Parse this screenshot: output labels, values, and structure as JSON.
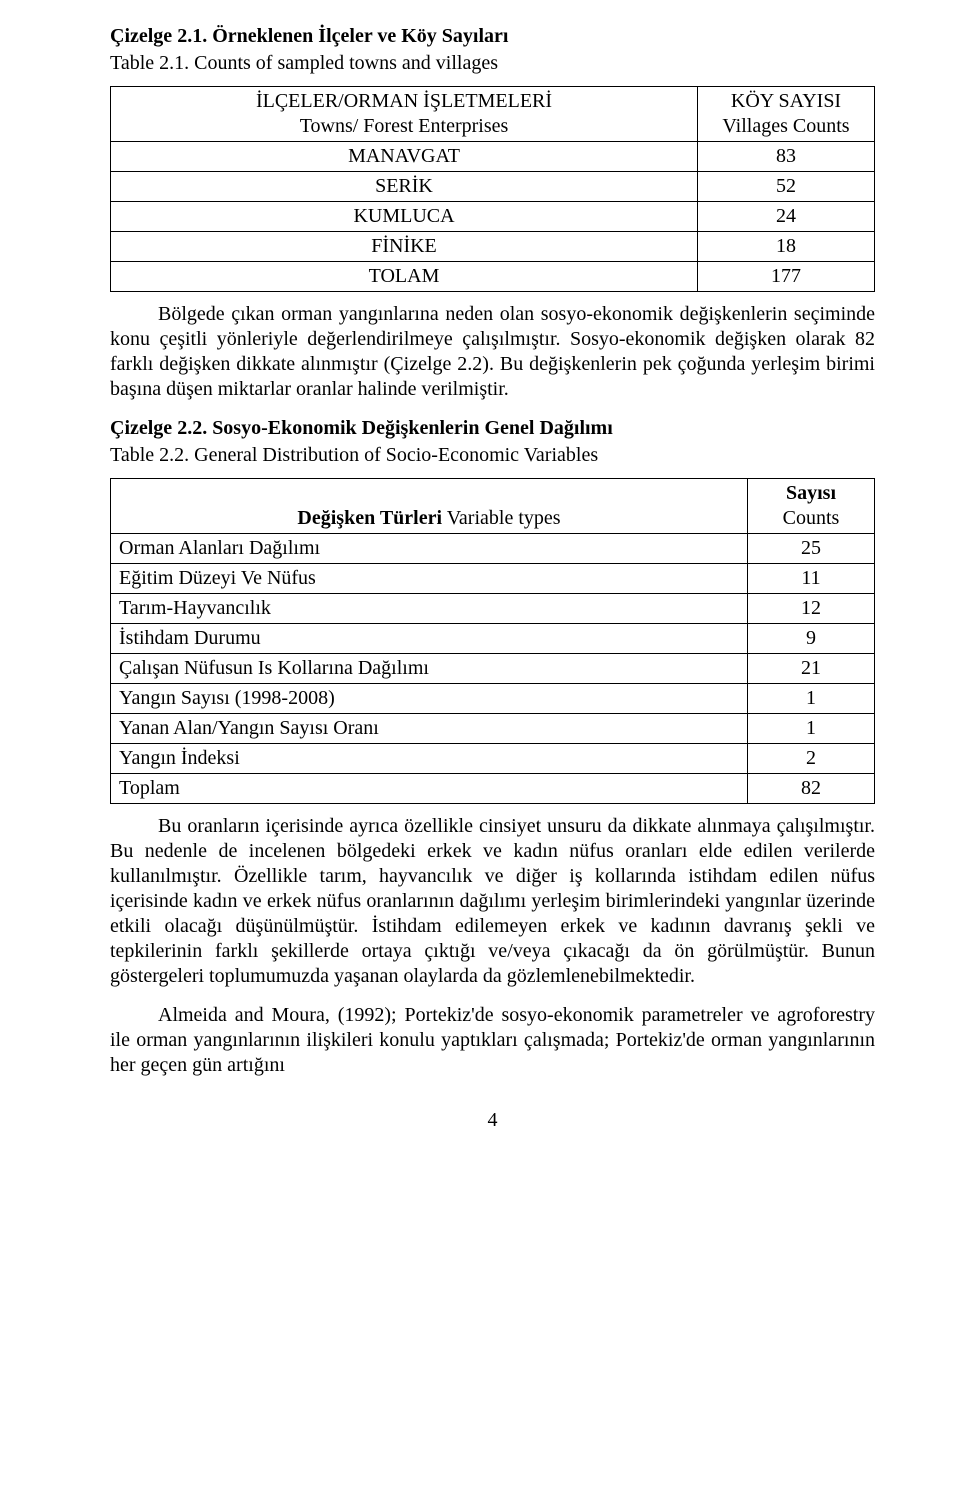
{
  "headings": {
    "t1_title": "Çizelge 2.1. Örneklenen İlçeler ve Köy Sayıları",
    "t1_sub": "Table 2.1. Counts of sampled towns and villages",
    "t2_title": "Çizelge 2.2. Sosyo-Ekonomik Değişkenlerin Genel Dağılımı",
    "t2_sub": "Table 2.2. General Distribution of Socio-Economic Variables"
  },
  "table1": {
    "header_left_line1": "İLÇELER/ORMAN İŞLETMELERİ",
    "header_left_line2": "Towns/ Forest Enterprises",
    "header_right_line1": "KÖY SAYISI",
    "header_right_line2": "Villages Counts",
    "rows": [
      {
        "label": "MANAVGAT",
        "value": "83"
      },
      {
        "label": "SERİK",
        "value": "52"
      },
      {
        "label": "KUMLUCA",
        "value": "24"
      },
      {
        "label": "FİNİKE",
        "value": "18"
      },
      {
        "label": "TOLAM",
        "value": "177"
      }
    ]
  },
  "para1": "Bölgede çıkan orman yangınlarına neden olan sosyo-ekonomik değişkenlerin seçiminde konu çeşitli yönleriyle değerlendirilmeye çalışılmıştır. Sosyo-ekonomik değişken olarak 82 farklı değişken dikkate alınmıştır (Çizelge 2.2). Bu değişkenlerin pek çoğunda yerleşim birimi başına düşen miktarlar oranlar halinde verilmiştir.",
  "table2": {
    "header_left_html": "<b>Değişken Türleri</b> Variable types",
    "header_right_line1": "Sayısı",
    "header_right_line2": "Counts",
    "rows": [
      {
        "label": "Orman Alanları Dağılımı",
        "value": "25"
      },
      {
        "label": "Eğitim Düzeyi Ve Nüfus",
        "value": "11"
      },
      {
        "label": "Tarım-Hayvancılık",
        "value": "12"
      },
      {
        "label": "İstihdam Durumu",
        "value": "9"
      },
      {
        "label": "Çalışan Nüfusun Is Kollarına Dağılımı",
        "value": "21"
      },
      {
        "label": "Yangın Sayısı (1998-2008)",
        "value": "1"
      },
      {
        "label": "Yanan Alan/Yangın Sayısı Oranı",
        "value": "1"
      },
      {
        "label": "Yangın İndeksi",
        "value": "2"
      },
      {
        "label": "Toplam",
        "value": "82"
      }
    ]
  },
  "para2": "Bu oranların içerisinde ayrıca özellikle cinsiyet unsuru da dikkate alınmaya çalışılmıştır. Bu nedenle de incelenen bölgedeki erkek ve kadın nüfus oranları elde edilen verilerde kullanılmıştır. Özellikle tarım, hayvancılık ve diğer iş kollarında istihdam edilen nüfus içerisinde kadın ve erkek nüfus oranlarının dağılımı yerleşim birimlerindeki yangınlar üzerinde etkili olacağı düşünülmüştür. İstihdam edilemeyen erkek ve kadının davranış şekli ve tepkilerinin farklı şekillerde ortaya çıktığı ve/veya çıkacağı da ön görülmüştür. Bunun göstergeleri toplumumuzda yaşanan olaylarda da gözlemlenebilmektedir.",
  "para3": "Almeida and Moura, (1992); Portekiz'de sosyo-ekonomik parametreler ve agroforestry ile orman yangınlarının ilişkileri konulu yaptıkları çalışmada; Portekiz'de orman yangınlarının her geçen gün artığını",
  "page_number": "4"
}
